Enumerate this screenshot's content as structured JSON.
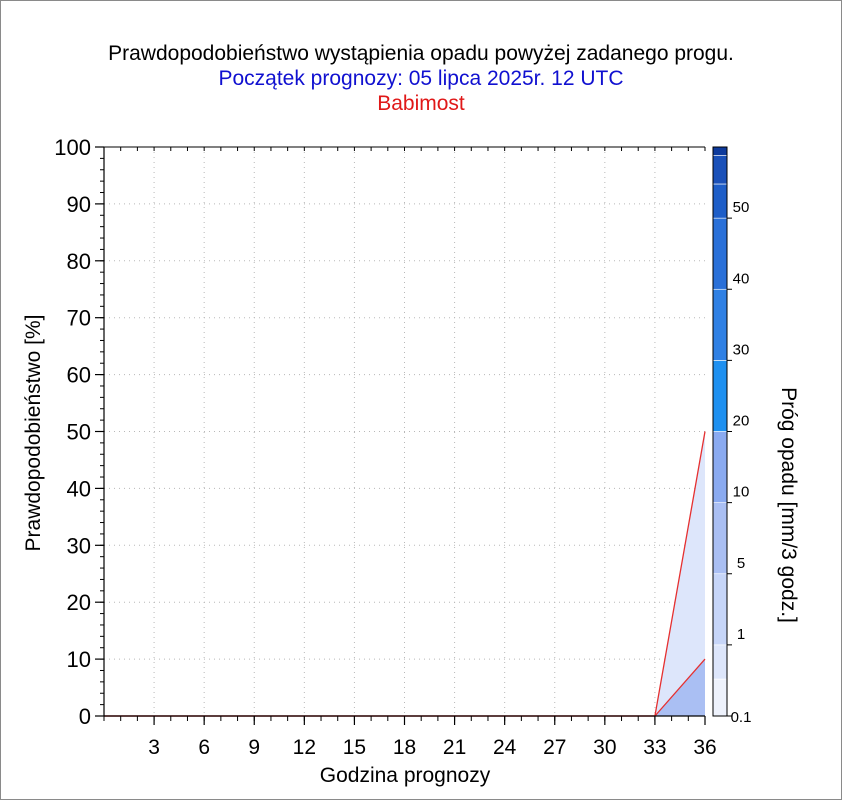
{
  "chart_data": {
    "type": "area",
    "title": "Prawdopodobieństwo wystąpienia opadu powyżej zadanego progu.",
    "subtitle": "Początek prognozy: 05 lipca 2025r. 12 UTC",
    "location": "Babimost",
    "xlabel": "Godzina prognozy",
    "ylabel": "Prawdopodobieństwo [%]",
    "xlim": [
      0,
      36
    ],
    "ylim": [
      0,
      100
    ],
    "x_ticks": [
      3,
      6,
      9,
      12,
      15,
      18,
      21,
      24,
      27,
      30,
      33,
      36
    ],
    "y_ticks": [
      0,
      10,
      20,
      30,
      40,
      50,
      60,
      70,
      80,
      90,
      100
    ],
    "grid": true,
    "x": [
      0,
      3,
      6,
      9,
      12,
      15,
      18,
      21,
      24,
      27,
      30,
      33,
      36
    ],
    "series": [
      {
        "name": "0.1",
        "color": "#dde6fb",
        "values": [
          0,
          0,
          0,
          0,
          0,
          0,
          0,
          0,
          0,
          0,
          0,
          0,
          50
        ]
      },
      {
        "name": "1",
        "color": "#aabff3",
        "values": [
          0,
          0,
          0,
          0,
          0,
          0,
          0,
          0,
          0,
          0,
          0,
          0,
          10
        ]
      }
    ],
    "line_color": "#e63030",
    "colorbar": {
      "label": "Próg opadu [mm/3 godz.]",
      "tick_labels": [
        "0.1",
        "1",
        "5",
        "10",
        "20",
        "30",
        "40",
        "50"
      ],
      "colors": [
        "#eef2fc",
        "#dde6fb",
        "#c6d5f8",
        "#aabff3",
        "#8aaaf0",
        "#1e90f0",
        "#2f80e4",
        "#2a70d8",
        "#1e5ec8",
        "#1a50b8",
        "#0e3a9c"
      ]
    }
  }
}
